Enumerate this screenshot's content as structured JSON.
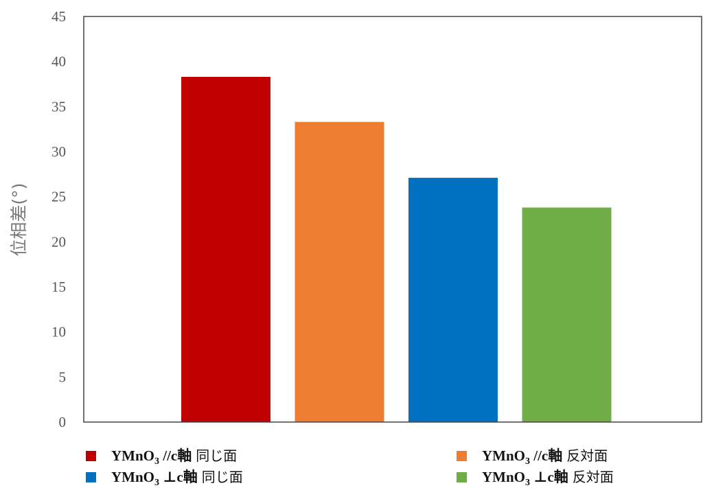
{
  "chart_data": {
    "type": "bar",
    "title": "",
    "xlabel": "",
    "ylabel": "位相差(°)",
    "ylim": [
      0,
      45
    ],
    "yticks": [
      "0",
      "5",
      "10",
      "15",
      "20",
      "25",
      "30",
      "35",
      "40",
      "45"
    ],
    "grid": false,
    "legend_position": "bottom",
    "series": [
      {
        "name_main": "YMnO",
        "name_sub": "3",
        "name_rest": " //c軸",
        "name_jp": "同じ面",
        "value": 38.3,
        "color": "#c00000"
      },
      {
        "name_main": "YMnO",
        "name_sub": "3",
        "name_rest": " //c軸",
        "name_jp": "反対面",
        "value": 33.3,
        "color": "#ed7d31"
      },
      {
        "name_main": "YMnO",
        "name_sub": "3",
        "name_rest": " ⊥c軸",
        "name_jp": "同じ面",
        "value": 27.1,
        "color": "#0070c0"
      },
      {
        "name_main": "YMnO",
        "name_sub": "3",
        "name_rest": " ⊥c軸",
        "name_jp": "反対面",
        "value": 23.8,
        "color": "#70ad47"
      }
    ]
  }
}
